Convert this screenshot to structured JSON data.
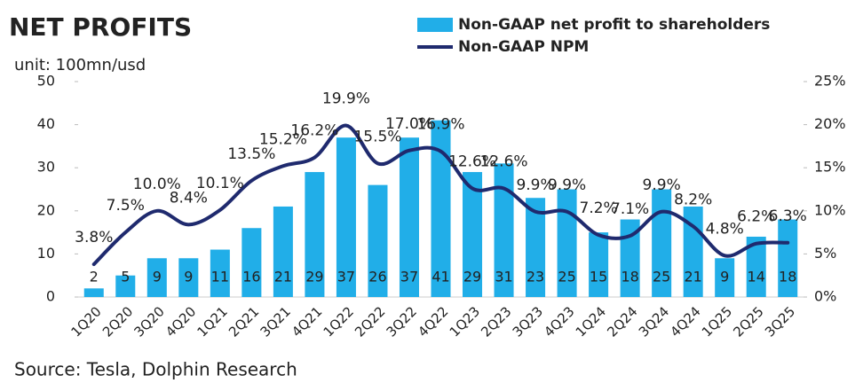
{
  "chart_data": {
    "type": "bar-line",
    "title": "NET PROFITS",
    "subtitle": "unit: 100mn/usd",
    "source": "Source: Tesla, Dolphin Research",
    "categories": [
      "1Q20",
      "2Q20",
      "3Q20",
      "4Q20",
      "1Q21",
      "2Q21",
      "3Q21",
      "4Q21",
      "1Q22",
      "2Q22",
      "3Q22",
      "4Q22",
      "1Q23",
      "2Q23",
      "3Q23",
      "4Q23",
      "1Q24",
      "2Q24",
      "3Q24",
      "4Q24",
      "1Q25",
      "2Q25",
      "3Q25"
    ],
    "series": [
      {
        "name": "Non-GAAP net profit to shareholders",
        "color": "#21aee8",
        "type": "bar",
        "values": [
          2,
          5,
          9,
          9,
          11,
          16,
          21,
          29,
          37,
          26,
          37,
          41,
          29,
          31,
          23,
          25,
          15,
          18,
          25,
          21,
          9,
          14,
          18
        ]
      },
      {
        "name": "Non-GAAP NPM",
        "color": "#1f2a6e",
        "type": "line",
        "axis": "y2",
        "values": [
          3.8,
          7.5,
          10.0,
          8.4,
          10.1,
          13.5,
          15.2,
          16.2,
          19.9,
          15.5,
          17.0,
          16.9,
          12.6,
          12.6,
          9.9,
          9.9,
          7.2,
          7.1,
          9.9,
          8.2,
          4.8,
          6.2,
          6.3
        ],
        "value_labels": [
          "3.8%",
          "7.5%",
          "10.0%",
          "8.4%",
          "10.1%",
          "13.5%",
          "15.2%",
          "16.2%",
          "19.9%",
          "15.5%",
          "17.0%",
          "16.9%",
          "12.6%",
          "12.6%",
          "9.9%",
          "9.9%",
          "7.2%",
          "7.1%",
          "9.9%",
          "8.2%",
          "4.8%",
          "6.2%",
          "6.3%"
        ]
      }
    ],
    "ylim": [
      0,
      50
    ],
    "yticks": [
      0,
      10,
      20,
      30,
      40,
      50
    ],
    "y2lim": [
      0,
      25
    ],
    "y2ticks": [
      {
        "value": 0,
        "label": "0%"
      },
      {
        "value": 5,
        "label": "5%"
      },
      {
        "value": 10,
        "label": "10%"
      },
      {
        "value": 15,
        "label": "15%"
      },
      {
        "value": 20,
        "label": "20%"
      },
      {
        "value": 25,
        "label": "25%"
      }
    ]
  }
}
